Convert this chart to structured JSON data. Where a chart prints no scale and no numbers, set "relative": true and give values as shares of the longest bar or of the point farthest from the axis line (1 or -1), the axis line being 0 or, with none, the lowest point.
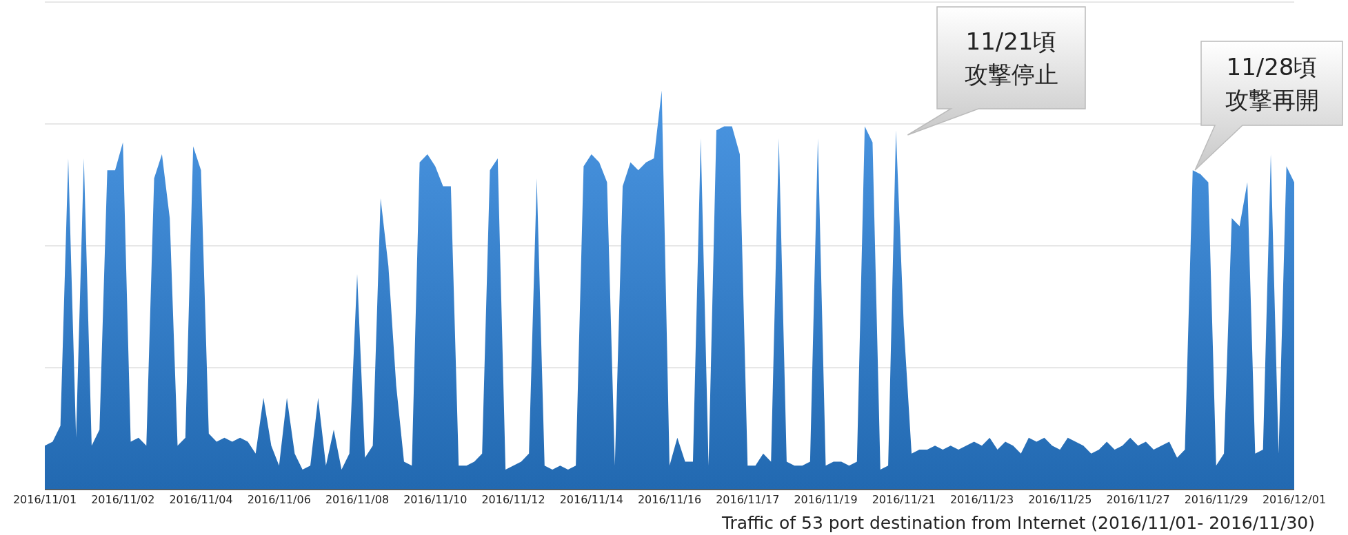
{
  "chart_data": {
    "type": "area",
    "relative": true,
    "grid": "y",
    "color": "#2b83dd",
    "xlabel": "Traffic of 53 port destination from Internet (2016/11/01- 2016/11/30)",
    "annotations": [
      "11/21頃",
      "攻撃停止",
      "11/28頃",
      "攻撃再開"
    ],
    "categories": [
      "2016/11/01",
      null,
      null,
      null,
      null,
      null,
      null,
      null,
      null,
      null,
      "2016/11/02",
      null,
      null,
      null,
      null,
      null,
      null,
      null,
      null,
      null,
      "2016/11/04",
      null,
      null,
      null,
      null,
      null,
      null,
      null,
      null,
      null,
      "2016/11/06",
      null,
      null,
      null,
      null,
      null,
      null,
      null,
      null,
      null,
      "2016/11/08",
      null,
      null,
      null,
      null,
      null,
      null,
      null,
      null,
      null,
      "2016/11/10",
      null,
      null,
      null,
      null,
      null,
      null,
      null,
      null,
      null,
      "2016/11/12",
      null,
      null,
      null,
      null,
      null,
      null,
      null,
      null,
      null,
      "2016/11/14",
      null,
      null,
      null,
      null,
      null,
      null,
      null,
      null,
      null,
      "2016/11/16",
      null,
      null,
      null,
      null,
      null,
      null,
      null,
      null,
      null,
      "2016/11/17",
      null,
      null,
      null,
      null,
      null,
      null,
      null,
      null,
      null,
      "2016/11/19",
      null,
      null,
      null,
      null,
      null,
      null,
      null,
      null,
      null,
      "2016/11/21",
      null,
      null,
      null,
      null,
      null,
      null,
      null,
      null,
      null,
      "2016/11/23",
      null,
      null,
      null,
      null,
      null,
      null,
      null,
      null,
      null,
      "2016/11/25",
      null,
      null,
      null,
      null,
      null,
      null,
      null,
      null,
      null,
      "2016/11/27",
      null,
      null,
      null,
      null,
      null,
      null,
      null,
      null,
      null,
      "2016/11/29",
      null,
      null,
      null,
      null,
      null,
      null,
      null,
      null,
      null,
      "2016/12/01"
    ],
    "values": [
      0.11,
      0.12,
      0.16,
      0.83,
      0.13,
      0.83,
      0.11,
      0.15,
      0.8,
      0.8,
      0.87,
      0.12,
      0.13,
      0.11,
      0.78,
      0.84,
      0.68,
      0.11,
      0.13,
      0.86,
      0.8,
      0.14,
      0.12,
      0.13,
      0.12,
      0.13,
      0.12,
      0.09,
      0.23,
      0.11,
      0.06,
      0.23,
      0.09,
      0.05,
      0.06,
      0.23,
      0.06,
      0.15,
      0.05,
      0.09,
      0.54,
      0.08,
      0.11,
      0.73,
      0.56,
      0.26,
      0.07,
      0.06,
      0.82,
      0.84,
      0.81,
      0.76,
      0.76,
      0.06,
      0.06,
      0.07,
      0.09,
      0.8,
      0.83,
      0.05,
      0.06,
      0.07,
      0.09,
      0.78,
      0.06,
      0.05,
      0.06,
      0.05,
      0.06,
      0.81,
      0.84,
      0.82,
      0.77,
      0.06,
      0.76,
      0.82,
      0.8,
      0.82,
      0.83,
      1.0,
      0.06,
      0.13,
      0.07,
      0.07,
      0.88,
      0.06,
      0.9,
      0.91,
      0.91,
      0.84,
      0.06,
      0.06,
      0.09,
      0.07,
      0.88,
      0.07,
      0.06,
      0.06,
      0.07,
      0.88,
      0.06,
      0.07,
      0.07,
      0.06,
      0.07,
      0.91,
      0.87,
      0.05,
      0.06,
      0.9,
      0.41,
      0.09,
      0.1,
      0.1,
      0.11,
      0.1,
      0.11,
      0.1,
      0.11,
      0.12,
      0.11,
      0.13,
      0.1,
      0.12,
      0.11,
      0.09,
      0.13,
      0.12,
      0.13,
      0.11,
      0.1,
      0.13,
      0.12,
      0.11,
      0.09,
      0.1,
      0.12,
      0.1,
      0.11,
      0.13,
      0.11,
      0.12,
      0.1,
      0.11,
      0.12,
      0.08,
      0.1,
      0.8,
      0.79,
      0.77,
      0.06,
      0.09,
      0.68,
      0.66,
      0.77,
      0.09,
      0.1,
      0.84,
      0.09,
      0.81,
      0.77
    ]
  }
}
